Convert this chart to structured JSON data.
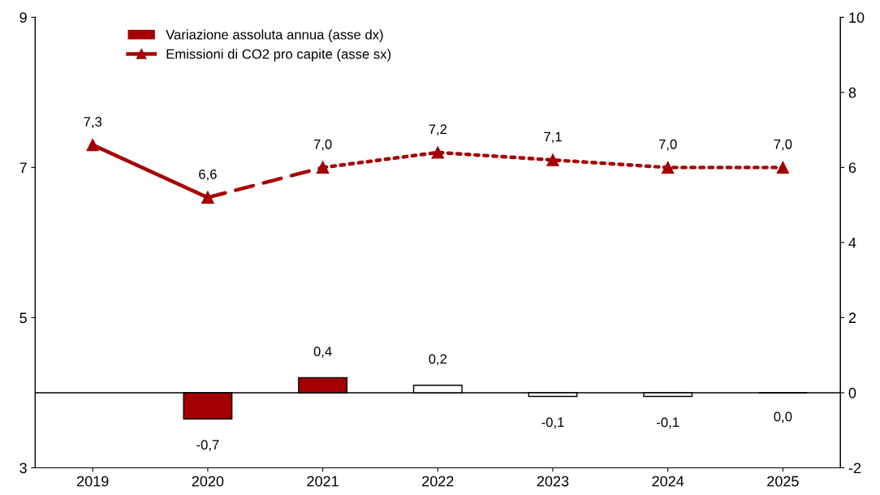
{
  "chart_data": {
    "type": "bar",
    "categories": [
      "2019",
      "2020",
      "2021",
      "2022",
      "2023",
      "2024",
      "2025"
    ],
    "series": [
      {
        "name": "Variazione assoluta annua (asse dx)",
        "axis": "y2",
        "color": "#a50000",
        "colors": [
          "#a50000",
          "#a50000",
          "#a50000",
          "#ffffff",
          "#ffffff",
          "#ffffff",
          "#000000"
        ],
        "values": [
          null,
          -0.7,
          0.4,
          0.2,
          -0.1,
          -0.1,
          0.0
        ],
        "value_labels": [
          null,
          "-0,7",
          "0,4",
          "0,2",
          "-0,1",
          "-0,1",
          "0,0"
        ]
      },
      {
        "name": "Emissioni di CO2 pro capite (asse sx)",
        "type": "line",
        "color": "#a50000",
        "line_style": "solid",
        "marker": "triangle",
        "values": [
          7.3,
          6.6,
          null,
          null,
          null,
          null,
          null
        ],
        "value_labels": [
          "7,3",
          "6,6",
          null,
          null,
          null,
          null,
          null
        ]
      },
      {
        "type": "line",
        "color": "#a50000",
        "line_style": "dashed",
        "marker": "triangle",
        "values": [
          null,
          6.6,
          7.0,
          null,
          null,
          null,
          null
        ]
      },
      {
        "type": "line",
        "color": "#a50000",
        "line_style": "dotted",
        "marker": "triangle",
        "values": [
          null,
          null,
          7.0,
          7.2,
          7.1,
          7.0,
          7.0
        ],
        "value_labels": [
          null,
          null,
          "7,0",
          "7,2",
          "7,1",
          "7,0",
          "7,0"
        ]
      }
    ],
    "ylim": [
      3,
      9
    ],
    "yticks": [
      3,
      5,
      7,
      9
    ],
    "y2lim": [
      -2,
      10
    ],
    "y2ticks": [
      -2,
      0,
      2,
      4,
      6,
      8,
      10
    ],
    "ref_lines": [
      {
        "axis": "y2",
        "value": 0,
        "color": "#000000"
      }
    ],
    "legend": "top left",
    "grid": false
  }
}
